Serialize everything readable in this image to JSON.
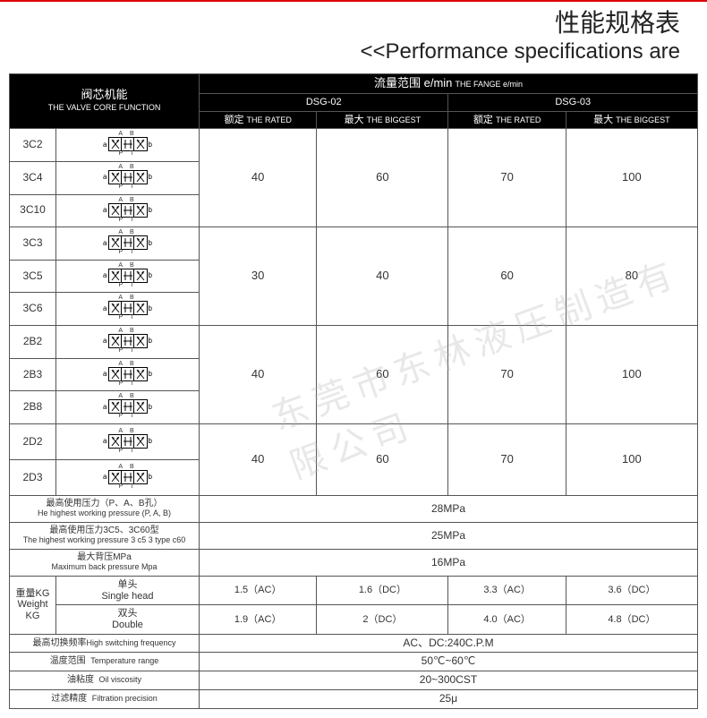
{
  "header": {
    "title_cn": "性能规格表",
    "title_en": "<<Performance specifications are"
  },
  "colhdr": {
    "valve_cn": "阀芯机能",
    "valve_en": "THE VALVE CORE FUNCTION",
    "flow_cn": "流量范围 e/min",
    "flow_en": "THE FANGE e/min",
    "dsg02": "DSG-02",
    "dsg03": "DSG-03",
    "rated_cn": "额定",
    "rated_en": "THE RATED",
    "max_cn": "最大",
    "max_en": "THE BIGGEST"
  },
  "groups": [
    {
      "models": [
        "3C2",
        "3C4",
        "3C10"
      ],
      "vals": [
        "40",
        "60",
        "70",
        "100"
      ]
    },
    {
      "models": [
        "3C3",
        "3C5",
        "3C6"
      ],
      "vals": [
        "30",
        "40",
        "60",
        "80"
      ]
    },
    {
      "models": [
        "2B2",
        "2B3",
        "2B8"
      ],
      "vals": [
        "40",
        "60",
        "70",
        "100"
      ]
    },
    {
      "models": [
        "2D2",
        "2D3"
      ],
      "vals": [
        "40",
        "60",
        "70",
        "100"
      ]
    }
  ],
  "specs": {
    "press1_cn": "最高使用压力（P、A、B孔）",
    "press1_en": "He highest working pressure (P, A, B)",
    "press1_val": "28MPa",
    "press2_cn": "最高使用压力3C5、3C60型",
    "press2_en": "The highest working pressure 3 c5 3 type c60",
    "press2_val": "25MPa",
    "press3_cn": "最大背压MPa",
    "press3_en": "Maximum back pressure Mpa",
    "press3_val": "16MPa",
    "weight_cn": "重量KG",
    "weight_en": "Weight KG",
    "single_cn": "单头",
    "single_en": "Single head",
    "double_cn": "双头",
    "double_en": "Double",
    "w_s": [
      "1.5（AC）",
      "1.6（DC）",
      "3.3（AC）",
      "3.6（DC）"
    ],
    "w_d": [
      "1.9（AC）",
      "2（DC）",
      "4.0（AC）",
      "4.8（DC）"
    ],
    "freq_cn": "最高切换频率",
    "freq_en": "High switching frequency",
    "freq_val": "AC、DC:240C.P.M",
    "temp_cn": "温度范围",
    "temp_en": "Temperature range",
    "temp_val": "50℃~60℃",
    "visc_cn": "油粘度",
    "visc_en": "Oil viscosity",
    "visc_val": "20~300CST",
    "filt_cn": "过滤精度",
    "filt_en": "Filtration precision",
    "filt_val": "25μ"
  },
  "colors": {
    "red": "#d00",
    "hdr_bg": "#000000",
    "hdr_fg": "#ffffff",
    "border": "#555555",
    "text": "#333333"
  },
  "watermark": "东莞市东林液压制造有限公司"
}
